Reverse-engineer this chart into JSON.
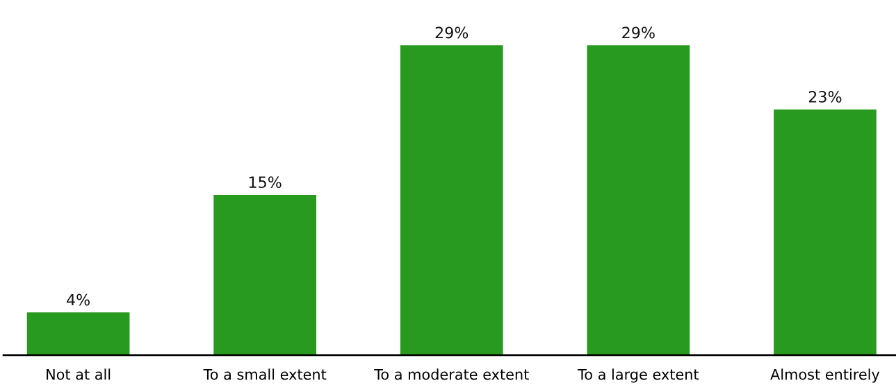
{
  "chart_data": {
    "type": "bar",
    "categories": [
      "Not at all",
      "To a small extent",
      "To a moderate extent",
      "To a large extent",
      "Almost entirely"
    ],
    "values": [
      4,
      15,
      29,
      29,
      23
    ],
    "value_labels": [
      "4%",
      "15%",
      "29%",
      "29%",
      "23%"
    ],
    "color": "#289a1f",
    "grid": false,
    "legend": false
  }
}
